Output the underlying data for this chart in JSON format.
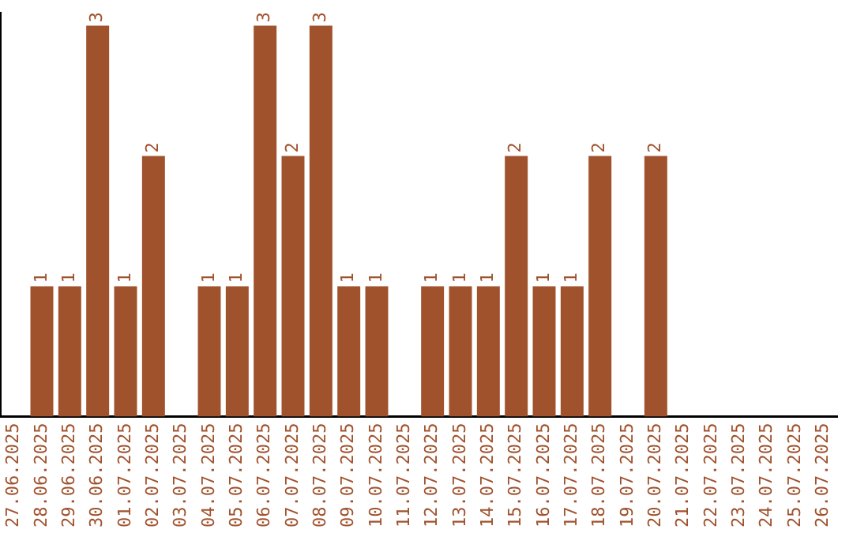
{
  "chart_data": {
    "type": "bar",
    "categories": [
      "27.06.2025",
      "28.06.2025",
      "29.06.2025",
      "30.06.2025",
      "01.07.2025",
      "02.07.2025",
      "03.07.2025",
      "04.07.2025",
      "05.07.2025",
      "06.07.2025",
      "07.07.2025",
      "08.07.2025",
      "09.07.2025",
      "10.07.2025",
      "11.07.2025",
      "12.07.2025",
      "13.07.2025",
      "14.07.2025",
      "15.07.2025",
      "16.07.2025",
      "17.07.2025",
      "18.07.2025",
      "19.07.2025",
      "20.07.2025",
      "21.07.2025",
      "22.07.2025",
      "23.07.2025",
      "24.07.2025",
      "25.07.2025",
      "26.07.2025"
    ],
    "values": [
      null,
      1,
      1,
      3,
      1,
      2,
      null,
      1,
      1,
      3,
      2,
      3,
      1,
      1,
      null,
      1,
      1,
      1,
      2,
      1,
      1,
      2,
      null,
      2,
      null,
      null,
      null,
      null,
      null,
      null
    ],
    "color": "#a0522d",
    "ylim": [
      0,
      3.1
    ],
    "tick_labels": "x",
    "data_labels": true,
    "grid": false,
    "legend": false
  }
}
